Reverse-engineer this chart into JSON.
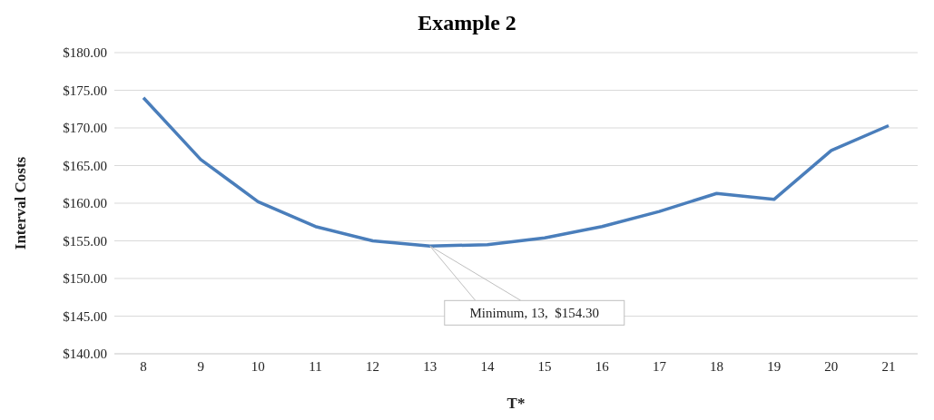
{
  "chart_data": {
    "type": "line",
    "title": "Example 2",
    "xlabel": "T*",
    "ylabel": "Interval Costs",
    "categories": [
      "8",
      "9",
      "10",
      "11",
      "12",
      "13",
      "14",
      "15",
      "16",
      "17",
      "18",
      "19",
      "20",
      "21"
    ],
    "values": [
      174.0,
      165.8,
      160.2,
      156.9,
      155.0,
      154.3,
      154.5,
      155.4,
      156.9,
      158.9,
      161.3,
      160.5,
      167.0,
      170.3
    ],
    "color": "#4a7ebb",
    "ylim": [
      140,
      180
    ],
    "yticks": [
      {
        "value": 140,
        "label": "$140.00"
      },
      {
        "value": 145,
        "label": "$145.00"
      },
      {
        "value": 150,
        "label": "$150.00"
      },
      {
        "value": 155,
        "label": "$155.00"
      },
      {
        "value": 160,
        "label": "$160.00"
      },
      {
        "value": 165,
        "label": "$165.00"
      },
      {
        "value": 170,
        "label": "$170.00"
      },
      {
        "value": 175,
        "label": "$175.00"
      },
      {
        "value": 180,
        "label": "$180.00"
      }
    ],
    "grid": "y",
    "legend": false,
    "marker": "none",
    "line_style": "solid",
    "annotations": [
      {
        "text": "Minimum, 13,  $154.30",
        "x": "13",
        "y": 154.3
      }
    ]
  }
}
